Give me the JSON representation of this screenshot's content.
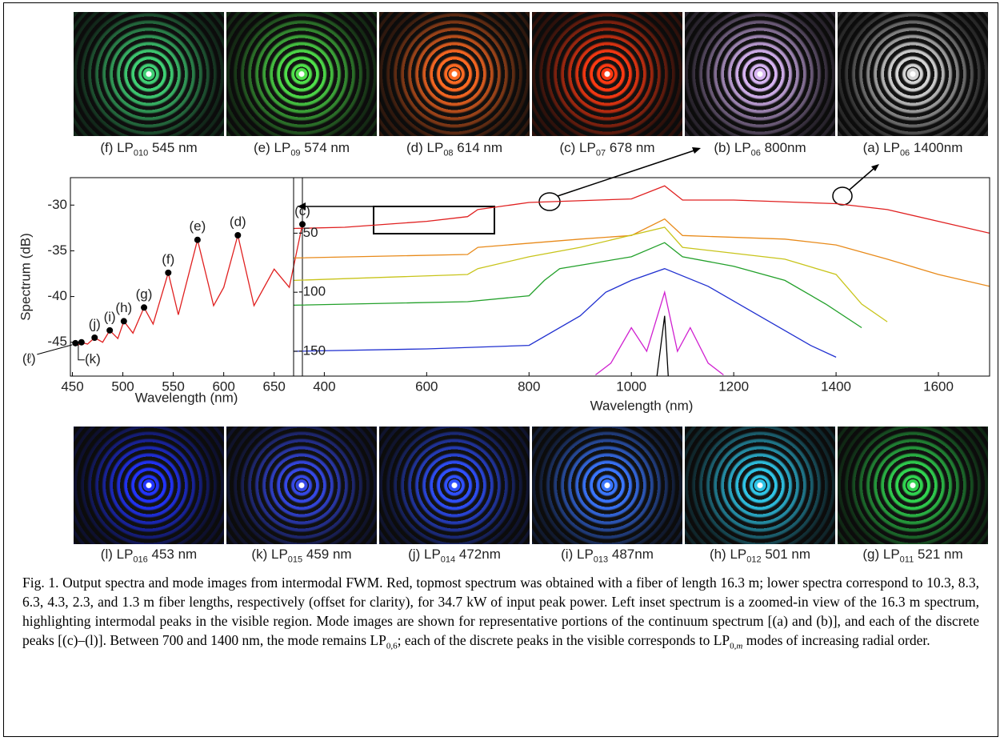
{
  "top_modes": [
    {
      "tag": "(f)",
      "mode": "LP",
      "sub": "010",
      "wavelength": "545 nm",
      "color": "#3fcf74"
    },
    {
      "tag": "(e)",
      "mode": "LP",
      "sub": "09",
      "wavelength": "574 nm",
      "color": "#4fe04a"
    },
    {
      "tag": "(d)",
      "mode": "LP",
      "sub": "08",
      "wavelength": "614 nm",
      "color": "#ff6a22"
    },
    {
      "tag": "(c)",
      "mode": "LP",
      "sub": "07",
      "wavelength": "678 nm",
      "color": "#ff3a12"
    },
    {
      "tag": "(b)",
      "mode": "LP",
      "sub": "06",
      "wavelength": "800nm",
      "color": "#d7b4f2"
    },
    {
      "tag": "(a)",
      "mode": "LP",
      "sub": "06",
      "wavelength": "1400nm",
      "color": "#d4d4d4"
    }
  ],
  "bottom_modes": [
    {
      "tag": "(l)",
      "mode": "LP",
      "sub": "016",
      "wavelength": "453 nm",
      "color": "#2234ff"
    },
    {
      "tag": "(k)",
      "mode": "LP",
      "sub": "015",
      "wavelength": "459 nm",
      "color": "#3548e6"
    },
    {
      "tag": "(j)",
      "mode": "LP",
      "sub": "014",
      "wavelength": "472nm",
      "color": "#2f50ff"
    },
    {
      "tag": "(i)",
      "mode": "LP",
      "sub": "013",
      "wavelength": "487nm",
      "color": "#3a76ff"
    },
    {
      "tag": "(h)",
      "mode": "LP",
      "sub": "012",
      "wavelength": "501 nm",
      "color": "#2fc4e6"
    },
    {
      "tag": "(g)",
      "mode": "LP",
      "sub": "011",
      "wavelength": "521 nm",
      "color": "#30d450"
    }
  ],
  "chart_data": [
    {
      "type": "line",
      "xlabel": "Wavelength (nm)",
      "ylabel": "Spectrum (dB)",
      "xlim": [
        448,
        678
      ],
      "ylim": [
        -48.7,
        -27
      ],
      "xticks": [
        450,
        500,
        550,
        600,
        650
      ],
      "yticks": [
        -30,
        -35,
        -40,
        -45
      ],
      "series": [
        {
          "color": "#e02020",
          "x": [
            450,
            453,
            456,
            459,
            465,
            472,
            480,
            487,
            495,
            501,
            510,
            521,
            530,
            545,
            555,
            574,
            590,
            600,
            614,
            630,
            650,
            665,
            678
          ],
          "values": [
            -45,
            -45.1,
            -45.3,
            -45,
            -45.2,
            -44.5,
            -45,
            -43.7,
            -44.6,
            -42.7,
            -44,
            -41.2,
            -43,
            -37.4,
            -42,
            -33.8,
            -41,
            -39,
            -33.3,
            -41,
            -37,
            -39,
            -32.1
          ]
        }
      ],
      "points": {
        "x": [
          453,
          459,
          472,
          487,
          501,
          521,
          545,
          574,
          614,
          678
        ],
        "values": [
          -45.1,
          -45,
          -44.5,
          -43.7,
          -42.7,
          -41.2,
          -37.4,
          -33.8,
          -33.3,
          -32.1
        ],
        "labels": [
          "(ℓ)",
          "(k)",
          "(j)",
          "(i)",
          "(h)",
          "(g)",
          "(f)",
          "(e)",
          "(d)",
          "(c)"
        ]
      }
    },
    {
      "type": "line",
      "xlabel": "Wavelength (nm)",
      "xlim": [
        340,
        1700
      ],
      "ylim": [
        -171,
        -3
      ],
      "xticks": [
        400,
        600,
        800,
        1000,
        1200,
        1400,
        1600
      ],
      "yticks": [
        -50,
        -100,
        -150
      ],
      "series": [
        {
          "color": "#e02020",
          "x": [
            340,
            440,
            600,
            680,
            700,
            800,
            1000,
            1065,
            1100,
            1200,
            1400,
            1500,
            1600,
            1700
          ],
          "values": [
            -46,
            -45,
            -40,
            -36,
            -30,
            -24,
            -21,
            -10,
            -22,
            -22,
            -25,
            -30,
            -40,
            -50
          ]
        },
        {
          "color": "#e88a1a",
          "x": [
            340,
            680,
            700,
            900,
            1000,
            1065,
            1100,
            1300,
            1400,
            1500,
            1600,
            1700
          ],
          "values": [
            -71,
            -68,
            -62,
            -55,
            -52,
            -38,
            -52,
            -55,
            -60,
            -72,
            -85,
            -95
          ]
        },
        {
          "color": "#c8c41a",
          "x": [
            340,
            680,
            700,
            800,
            900,
            1065,
            1100,
            1300,
            1400,
            1450,
            1500
          ],
          "values": [
            -90,
            -85,
            -80,
            -70,
            -62,
            -45,
            -62,
            -72,
            -85,
            -110,
            -125
          ]
        },
        {
          "color": "#22a02a",
          "x": [
            340,
            680,
            800,
            830,
            860,
            1000,
            1065,
            1100,
            1200,
            1300,
            1380,
            1450
          ],
          "values": [
            -111,
            -108,
            -103,
            -90,
            -80,
            -70,
            -58,
            -70,
            -78,
            -90,
            -110,
            -130
          ]
        },
        {
          "color": "#2030d0",
          "x": [
            340,
            600,
            800,
            900,
            950,
            1000,
            1065,
            1150,
            1250,
            1350,
            1400
          ],
          "values": [
            -150,
            -148,
            -145,
            -120,
            -100,
            -90,
            -80,
            -95,
            -120,
            -145,
            -155
          ]
        },
        {
          "color": "#d020d0",
          "x": [
            930,
            960,
            1000,
            1030,
            1065,
            1090,
            1115,
            1150,
            1180
          ],
          "values": [
            -170,
            -160,
            -130,
            -150,
            -100,
            -150,
            -130,
            -160,
            -170
          ]
        },
        {
          "color": "#000000",
          "x": [
            1050,
            1065,
            1072
          ],
          "values": [
            -171,
            -120,
            -171
          ]
        }
      ]
    }
  ],
  "caption": {
    "text1": "Fig. 1. Output spectra and mode images from intermodal FWM. Red, topmost spectrum was obtained with a fiber of length 16.3 m; lower spectra correspond to 10.3, 8.3, 6.3, 4.3, 2.3, and 1.3 m fiber lengths, respectively (offset for clarity), for 34.7 kW of input peak power. Left inset spectrum is a zoomed-in view of the 16.3 m spectrum, highlighting intermodal peaks in the visible region. Mode images are shown for representative portions of the continuum spectrum [(a) and (b)], and each of the discrete peaks [(c)–(l)]. Between 700 and 1400 nm, the mode remains LP",
    "sub1": "0,6",
    "text2": "; each of the discrete peaks in the visible corresponds to LP",
    "sub2": "0,",
    "var2": "m",
    "text3": " modes of increasing radial order."
  }
}
